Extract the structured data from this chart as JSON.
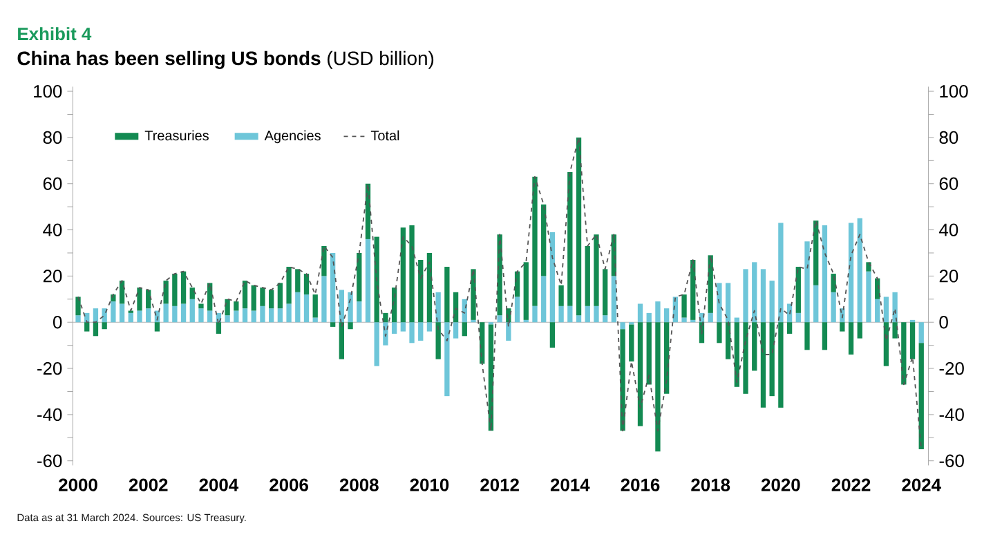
{
  "chart_data": {
    "type": "bar",
    "title": "Exhibit 4",
    "subtitle": "**China has been selling US bonds** (USD billion)",
    "annotations": [
      "Data as at 31 March 2024.  Sources: US Treasury."
    ],
    "stacked": true,
    "legend": "top left",
    "x": [
      2000,
      2000.25,
      2000.5,
      2000.75,
      2001,
      2001.25,
      2001.5,
      2001.75,
      2002,
      2002.25,
      2002.5,
      2002.75,
      2003,
      2003.25,
      2003.5,
      2003.75,
      2004,
      2004.25,
      2004.5,
      2004.75,
      2005,
      2005.25,
      2005.5,
      2005.75,
      2006,
      2006.25,
      2006.5,
      2006.75,
      2007,
      2007.25,
      2007.5,
      2007.75,
      2008,
      2008.25,
      2008.5,
      2008.75,
      2009,
      2009.25,
      2009.5,
      2009.75,
      2010,
      2010.25,
      2010.5,
      2010.75,
      2011,
      2011.25,
      2011.5,
      2011.75,
      2012,
      2012.25,
      2012.5,
      2012.75,
      2013,
      2013.25,
      2013.5,
      2013.75,
      2014,
      2014.25,
      2014.5,
      2014.75,
      2015,
      2015.25,
      2015.5,
      2015.75,
      2016,
      2016.25,
      2016.5,
      2016.75,
      2017,
      2017.25,
      2017.5,
      2017.75,
      2018,
      2018.25,
      2018.5,
      2018.75,
      2019,
      2019.25,
      2019.5,
      2019.75,
      2020,
      2020.25,
      2020.5,
      2020.75,
      2021,
      2021.25,
      2021.5,
      2021.75,
      2022,
      2022.25,
      2022.5,
      2022.75,
      2023,
      2023.25,
      2023.5,
      2023.75,
      2024
    ],
    "xlim": [
      1999.85,
      2024.2
    ],
    "xticks": [
      2000,
      2002,
      2004,
      2006,
      2008,
      2010,
      2012,
      2014,
      2016,
      2018,
      2020,
      2022,
      2024
    ],
    "ylim": [
      -62,
      102
    ],
    "yticks": [
      -60,
      {
        "value": -50,
        "label": null
      },
      -40,
      {
        "value": -30,
        "label": null
      },
      -20,
      {
        "value": -10,
        "label": null
      },
      0,
      {
        "value": 10,
        "label": null
      },
      20,
      {
        "value": 30,
        "label": null
      },
      40,
      {
        "value": 50,
        "label": null
      },
      60,
      {
        "value": 70,
        "label": null
      },
      80,
      {
        "value": 90,
        "label": null
      },
      100
    ],
    "y2lim": [
      -62,
      102
    ],
    "y2ticks": [
      -60,
      {
        "value": -50,
        "label": null
      },
      -40,
      {
        "value": -30,
        "label": null
      },
      -20,
      {
        "value": -10,
        "label": null
      },
      0,
      {
        "value": 10,
        "label": null
      },
      20,
      {
        "value": 30,
        "label": null
      },
      40,
      {
        "value": 50,
        "label": null
      },
      60,
      {
        "value": 70,
        "label": null
      },
      80,
      {
        "value": 90,
        "label": null
      },
      100
    ],
    "series": [
      {
        "name": "Agencies",
        "color": "#6ec6d9",
        "values": [
          3,
          4,
          6,
          6,
          9,
          8,
          4,
          5,
          6,
          5,
          8,
          7,
          8,
          10,
          6,
          5,
          4,
          3,
          5,
          6,
          5,
          7,
          6,
          6,
          8,
          13,
          12,
          2,
          20,
          30,
          14,
          13,
          9,
          36,
          -19,
          -10,
          -5,
          -4,
          -9,
          -8,
          -4,
          13,
          -32,
          -7,
          10,
          1,
          0,
          -1,
          3,
          -8,
          11,
          1,
          7,
          20,
          39,
          7,
          7,
          3,
          7,
          7,
          3,
          20,
          -3,
          -1,
          8,
          4,
          9,
          6,
          11,
          2,
          1,
          4,
          4,
          17,
          17,
          2,
          23,
          26,
          23,
          18,
          43,
          8,
          4,
          35,
          16,
          42,
          13,
          6,
          43,
          45,
          22,
          10,
          11,
          13,
          0,
          1,
          -9
        ]
      },
      {
        "name": "Treasuries",
        "color": "#138a52",
        "values": [
          8,
          -4,
          -6,
          -3,
          3,
          10,
          1,
          10,
          8,
          -4,
          10,
          14,
          14,
          5,
          2,
          12,
          -5,
          7,
          4,
          12,
          11,
          8,
          8,
          11,
          16,
          10,
          9,
          10,
          13,
          -2,
          -16,
          -3,
          21,
          24,
          37,
          4,
          15,
          41,
          42,
          27,
          30,
          -16,
          24,
          13,
          -6,
          22,
          -18,
          -46,
          35,
          6,
          11,
          25,
          56,
          31,
          -11,
          9,
          58,
          77,
          26,
          31,
          20,
          18,
          -44,
          -16,
          -45,
          -27,
          -56,
          -31,
          0,
          10,
          26,
          -9,
          25,
          -9,
          -16,
          -28,
          -31,
          -21,
          -37,
          -32,
          -37,
          -5,
          20,
          -12,
          28,
          -12,
          8,
          -4,
          -14,
          -7,
          4,
          9,
          -19,
          -7,
          -27,
          -16,
          -46
        ]
      },
      {
        "name": "Total",
        "type": "line",
        "color": "#555555",
        "line_style": "dashed",
        "values": [
          11,
          0,
          0,
          3,
          12,
          18,
          5,
          15,
          14,
          1,
          18,
          21,
          22,
          15,
          8,
          17,
          -1,
          10,
          9,
          18,
          16,
          15,
          14,
          17,
          24,
          23,
          21,
          12,
          33,
          28,
          -2,
          10,
          30,
          60,
          18,
          -6,
          10,
          37,
          33,
          19,
          26,
          -3,
          -8,
          6,
          4,
          23,
          -18,
          -47,
          38,
          -2,
          22,
          26,
          63,
          51,
          28,
          16,
          65,
          80,
          33,
          38,
          23,
          38,
          -47,
          -17,
          -37,
          -23,
          -47,
          -25,
          11,
          12,
          27,
          -5,
          29,
          8,
          1,
          -26,
          -8,
          5,
          -14,
          -14,
          6,
          3,
          24,
          23,
          44,
          30,
          21,
          2,
          29,
          38,
          26,
          19,
          -8,
          6,
          -27,
          -15,
          -55
        ]
      }
    ]
  }
}
